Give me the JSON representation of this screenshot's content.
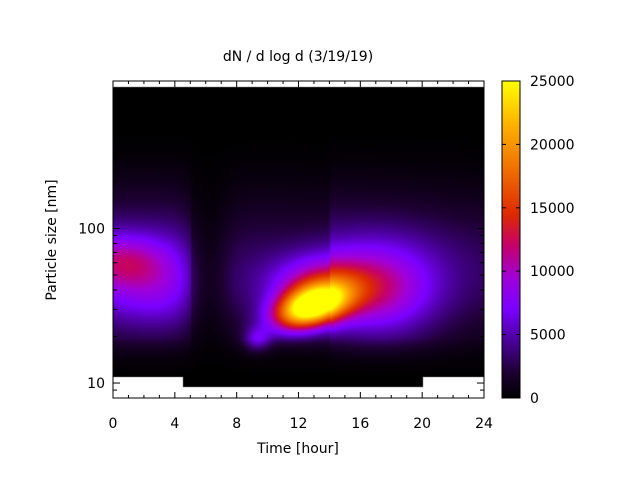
{
  "chart_data": {
    "type": "heatmap",
    "title": "dN / d log d (3/19/19)",
    "xlabel": "Time [hour]",
    "ylabel": "Particle size [nm]",
    "xlim": [
      0,
      24
    ],
    "ylim": [
      8,
      900
    ],
    "y_scale": "log",
    "x_ticks": [
      0,
      4,
      8,
      12,
      16,
      20,
      24
    ],
    "y_tick_labels": [
      {
        "value": 10,
        "label": "10"
      },
      {
        "value": 100,
        "label": "100"
      }
    ],
    "colorbar": {
      "min": 0,
      "max": 25000,
      "ticks": [
        0,
        5000,
        10000,
        15000,
        20000,
        25000
      ],
      "palette": "black-purple-red-orange-yellow",
      "colors": [
        "#000000",
        "#6a00ff",
        "#cc2200",
        "#ff9900",
        "#ffff00"
      ]
    },
    "features": [
      {
        "t_center": 12.8,
        "d_center_nm": 32,
        "peak": 25000,
        "note": "new particle formation burst around midday"
      },
      {
        "t_center": 0.3,
        "d_center_nm": 60,
        "peak": 11000,
        "note": "early morning accumulation mode"
      },
      {
        "t_center": 18.0,
        "d_center_nm": 45,
        "peak": 9000,
        "note": "afternoon background mode"
      }
    ],
    "grid": false,
    "legend": "colorbar-right"
  }
}
